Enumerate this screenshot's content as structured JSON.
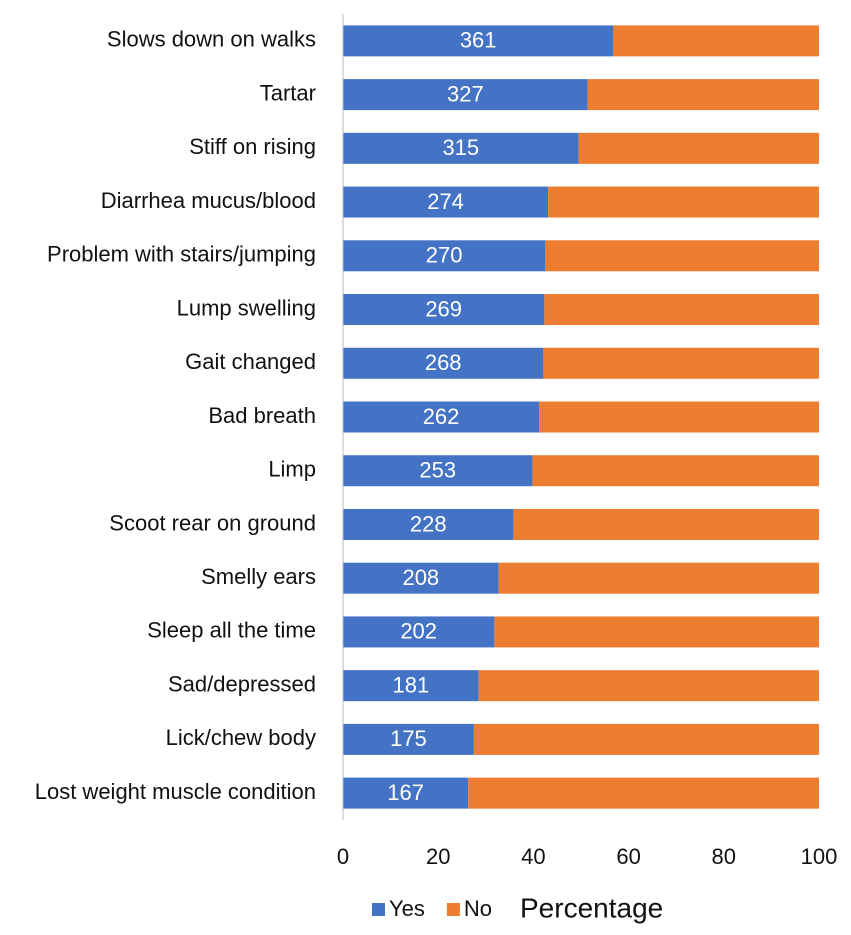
{
  "chart_data": {
    "type": "stacked_bar_horizontal",
    "x_label": "Percentage",
    "categories": [
      "Slows down on walks",
      "Tartar",
      "Stiff on rising",
      "Diarrhea mucus/blood",
      "Problem with stairs/jumping",
      "Lump swelling",
      "Gait changed",
      "Bad breath",
      "Limp",
      "Scoot rear on ground",
      "Smelly ears",
      "Sleep all the time",
      "Sad/depressed",
      "Lick/chew body",
      "Lost weight muscle condition"
    ],
    "series": [
      {
        "name": "Yes",
        "color": "#4472c4",
        "values": [
          56.8,
          51.4,
          49.5,
          43.1,
          42.5,
          42.3,
          42.1,
          41.2,
          39.8,
          35.8,
          32.7,
          31.8,
          28.5,
          27.5,
          26.3
        ]
      },
      {
        "name": "No",
        "color": "#ed7d31",
        "values": [
          43.2,
          48.6,
          50.5,
          56.9,
          57.5,
          57.7,
          57.9,
          58.8,
          60.2,
          64.2,
          67.3,
          68.2,
          71.5,
          72.5,
          73.7
        ]
      }
    ],
    "yes_counts": [
      361,
      327,
      315,
      274,
      270,
      269,
      268,
      262,
      253,
      228,
      208,
      202,
      181,
      175,
      167
    ],
    "xlim": [
      0,
      100
    ],
    "xticks": [
      0,
      20,
      40,
      60,
      80,
      100
    ]
  }
}
